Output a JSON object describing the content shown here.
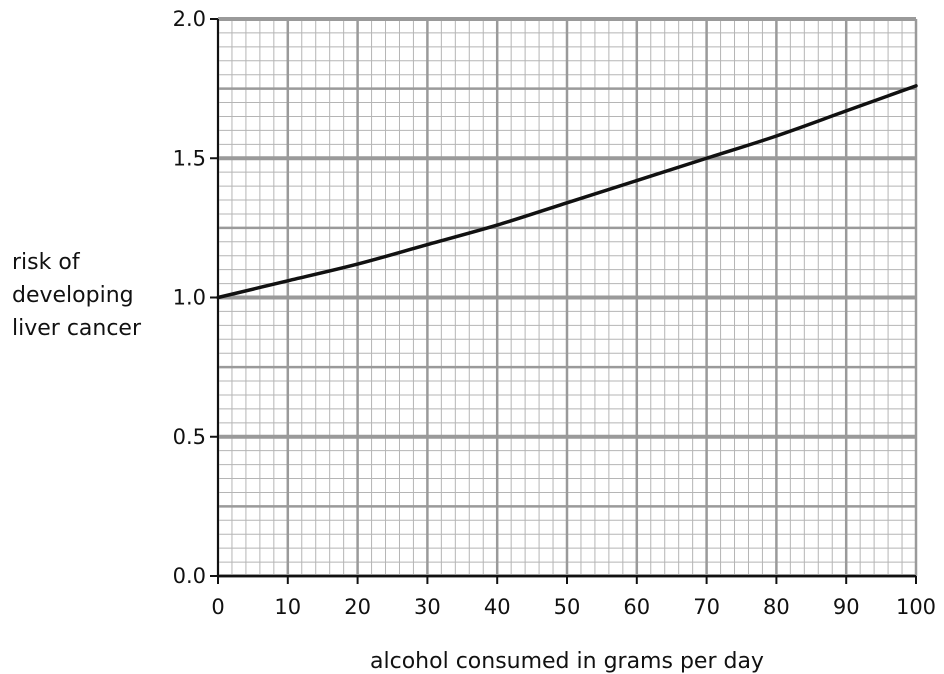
{
  "chart_data": {
    "type": "line",
    "title": "",
    "xlabel": "alcohol consumed in grams per day",
    "ylabel_lines": [
      "risk of",
      "developing",
      "liver cancer"
    ],
    "xlim": [
      0,
      100
    ],
    "ylim": [
      0.0,
      2.0
    ],
    "x_ticks": [
      0,
      10,
      20,
      30,
      40,
      50,
      60,
      70,
      80,
      90,
      100
    ],
    "y_ticks": [
      "0.0",
      "0.5",
      "1.0",
      "1.5",
      "2.0"
    ],
    "grid": true,
    "series": [
      {
        "x": [
          0,
          10,
          20,
          30,
          40,
          50,
          60,
          70,
          80,
          90,
          100
        ],
        "y": [
          1.0,
          1.06,
          1.12,
          1.19,
          1.26,
          1.34,
          1.42,
          1.5,
          1.58,
          1.67,
          1.76
        ]
      }
    ]
  }
}
